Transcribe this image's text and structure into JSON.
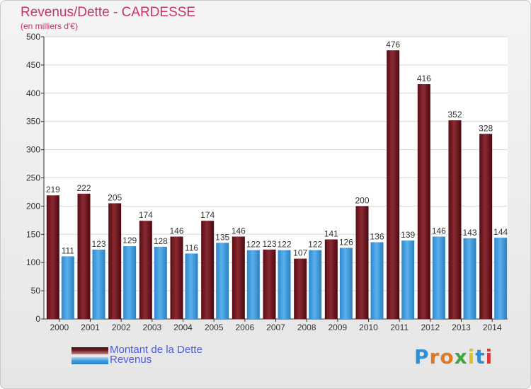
{
  "title": "Revenus/Dette - CARDESSE",
  "subtitle": "(en milliers d'€)",
  "brand": "Proxiti",
  "colors": {
    "title": "#c8336a",
    "legend_text": "#4a5de0",
    "dette": "#7a1e26",
    "revenus": "#3f9ee0",
    "grid": "#d8d8d8"
  },
  "chart_data": {
    "type": "bar",
    "title": "Revenus/Dette - CARDESSE",
    "subtitle": "(en milliers d'€)",
    "categories": [
      "2000",
      "2001",
      "2002",
      "2003",
      "2004",
      "2005",
      "2006",
      "2007",
      "2008",
      "2009",
      "2010",
      "2011",
      "2012",
      "2013",
      "2014"
    ],
    "series": [
      {
        "name": "Montant de la Dette",
        "values": [
          219,
          222,
          205,
          174,
          146,
          174,
          146,
          123,
          107,
          141,
          200,
          476,
          416,
          352,
          328
        ]
      },
      {
        "name": "Revenus",
        "values": [
          111,
          123,
          129,
          128,
          116,
          135,
          122,
          122,
          122,
          126,
          136,
          139,
          146,
          143,
          144
        ]
      }
    ],
    "ylim": [
      0,
      500
    ],
    "yticks": [
      0,
      50,
      100,
      150,
      200,
      250,
      300,
      350,
      400,
      450,
      500
    ],
    "grid": true,
    "legend": "bottom-left"
  }
}
